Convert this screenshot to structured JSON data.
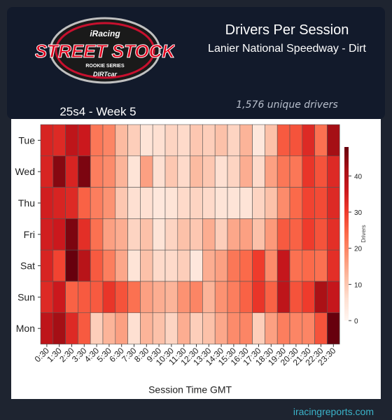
{
  "header": {
    "logo": {
      "brand": "iRacing",
      "name": "STREET STOCK",
      "series": "ROOKIE SERIES",
      "sponsor": "DIRTcar"
    },
    "title": "Drivers Per Session",
    "subtitle": "Lanier National Speedway - Dirt",
    "unique_drivers": "1,576 unique drivers",
    "week": "25s4 - Week 5"
  },
  "footer": {
    "link": "iracingreports.com"
  },
  "colors": {
    "page_bg": "#1e2430",
    "panel_bg": "#121a2b",
    "footer_link": "#3bb3c9",
    "scale_low": "#fff5f0",
    "scale_high": "#67000d"
  },
  "chart_data": {
    "type": "heatmap",
    "title": "",
    "xlabel": "Session Time GMT",
    "ylabel": "",
    "x": [
      "0:30",
      "1:30",
      "2:30",
      "3:30",
      "4:30",
      "5:30",
      "6:30",
      "7:30",
      "8:30",
      "9:30",
      "10:30",
      "11:30",
      "12:30",
      "13:30",
      "14:30",
      "15:30",
      "16:30",
      "17:30",
      "18:30",
      "19:30",
      "20:30",
      "21:30",
      "22:30",
      "23:30"
    ],
    "y": [
      "Tue",
      "Wed",
      "Thu",
      "Fri",
      "Sat",
      "Sun",
      "Mon"
    ],
    "values": [
      [
        34,
        33,
        38,
        36,
        22,
        20,
        12,
        9,
        5,
        6,
        8,
        7,
        10,
        9,
        11,
        8,
        13,
        4,
        11,
        26,
        27,
        33,
        23,
        42
      ],
      [
        34,
        45,
        34,
        46,
        21,
        19,
        13,
        5,
        16,
        6,
        10,
        7,
        12,
        10,
        6,
        8,
        14,
        7,
        16,
        22,
        22,
        31,
        27,
        33
      ],
      [
        35,
        34,
        33,
        25,
        21,
        18,
        10,
        6,
        6,
        4,
        5,
        7,
        8,
        7,
        5,
        5,
        5,
        8,
        11,
        19,
        24,
        29,
        28,
        33
      ],
      [
        35,
        36,
        46,
        32,
        23,
        16,
        14,
        8,
        11,
        5,
        8,
        11,
        10,
        14,
        9,
        15,
        16,
        11,
        17,
        26,
        25,
        30,
        27,
        32
      ],
      [
        34,
        29,
        48,
        39,
        26,
        21,
        15,
        5,
        11,
        7,
        7,
        9,
        4,
        14,
        16,
        22,
        24,
        30,
        19,
        37,
        23,
        24,
        23,
        32
      ],
      [
        33,
        36,
        25,
        26,
        26,
        31,
        27,
        23,
        16,
        14,
        13,
        18,
        20,
        13,
        18,
        21,
        25,
        31,
        25,
        38,
        27,
        30,
        41,
        37
      ],
      [
        38,
        42,
        33,
        26,
        9,
        13,
        16,
        6,
        13,
        11,
        8,
        14,
        9,
        11,
        15,
        19,
        20,
        9,
        16,
        21,
        20,
        20,
        27,
        48
      ]
    ],
    "colorbar": {
      "label": "Drivers",
      "min": 0,
      "max": 48,
      "ticks": [
        0,
        10,
        20,
        30,
        40
      ]
    }
  }
}
